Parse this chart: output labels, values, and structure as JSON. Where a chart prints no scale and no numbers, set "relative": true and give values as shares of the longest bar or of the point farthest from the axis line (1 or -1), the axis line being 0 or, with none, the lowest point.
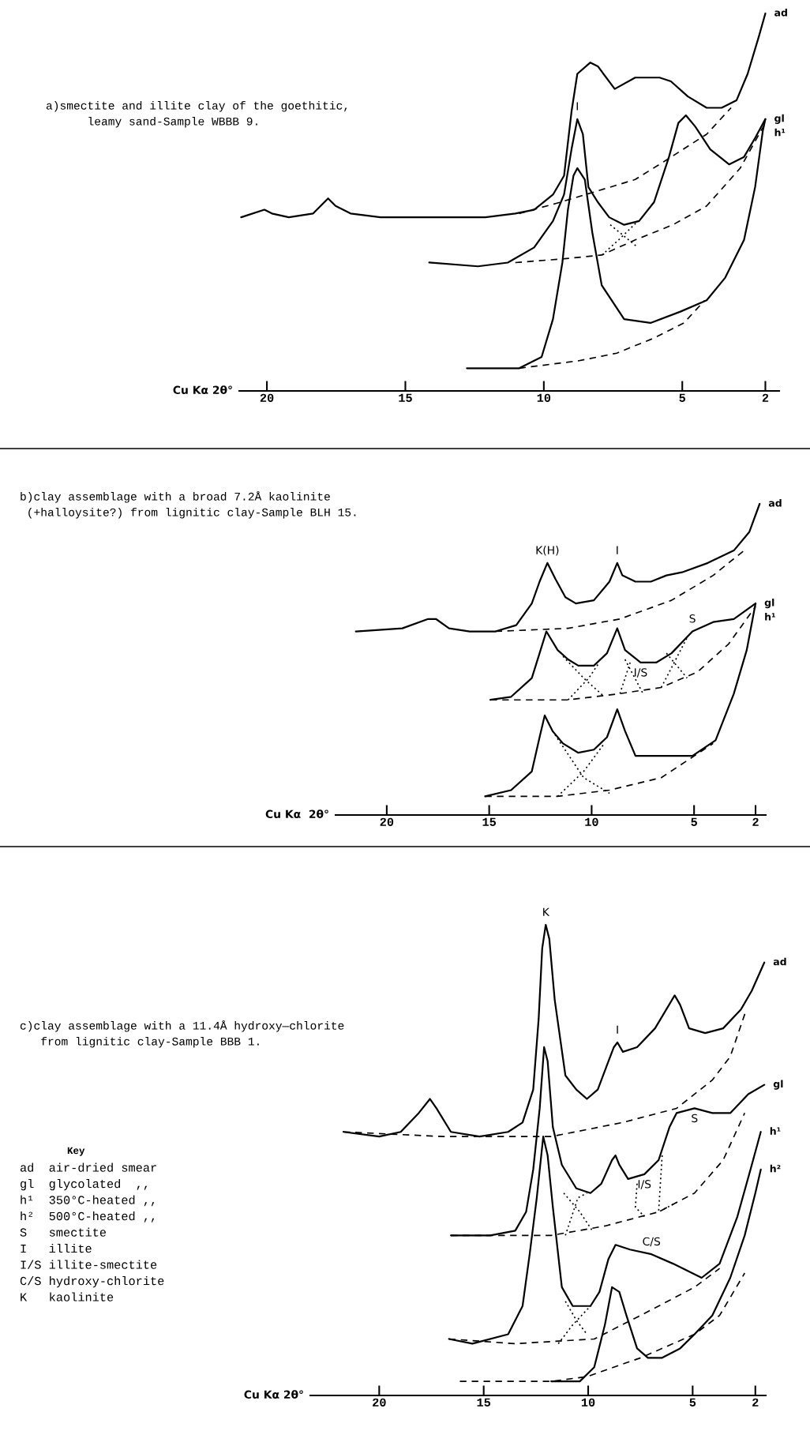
{
  "chart_data": [
    {
      "type": "line",
      "relative": true,
      "title": "a)smectite and illite clay of the goethitic,\n      leamy sand-Sample WBBB 9.",
      "xlabel": "Cu Kα 2θ°",
      "xlim": [
        21,
        1.5
      ],
      "xticks": [
        20,
        15,
        10,
        5,
        2
      ],
      "grid": false,
      "marker": "none",
      "series": [
        {
          "name": "ad",
          "color": "#000000",
          "line_style": "solid",
          "x": [
            20.93,
            20.09,
            19.82,
            19.21,
            18.33,
            17.79,
            17.52,
            16.98,
            15.9,
            14.0,
            12.11,
            11.03,
            10.35,
            9.67,
            9.27,
            9.0,
            8.79,
            8.32,
            8.05,
            7.44,
            6.7,
            5.82,
            5.41,
            4.8,
            4.12,
            3.58,
            3.04,
            2.64,
            2.23,
            2.0
          ],
          "values": [
            0.46,
            0.48,
            0.47,
            0.46,
            0.47,
            0.51,
            0.49,
            0.47,
            0.46,
            0.46,
            0.46,
            0.47,
            0.48,
            0.52,
            0.57,
            0.74,
            0.84,
            0.87,
            0.86,
            0.8,
            0.83,
            0.83,
            0.82,
            0.78,
            0.75,
            0.75,
            0.77,
            0.84,
            0.94,
            1.0
          ]
        },
        {
          "color": "#000000",
          "line_style": "dashed",
          "x": [
            10.89,
            9.4,
            8.05,
            6.7,
            5.61,
            4.12,
            3.24
          ],
          "values": [
            0.47,
            0.5,
            0.53,
            0.56,
            0.61,
            0.68,
            0.75
          ]
        },
        {
          "name": "gl",
          "color": "#000000",
          "line_style": "solid",
          "x": [
            14.14,
            12.38,
            11.3,
            10.35,
            9.67,
            9.27,
            9.0,
            8.79,
            8.59,
            8.39,
            8.05,
            7.64,
            7.1,
            6.56,
            6.02,
            5.48,
            5.14,
            4.87,
            4.53,
            3.99,
            3.31,
            2.77,
            2.37,
            2.0
          ],
          "values": [
            0.34,
            0.33,
            0.34,
            0.38,
            0.45,
            0.52,
            0.64,
            0.72,
            0.68,
            0.54,
            0.5,
            0.46,
            0.44,
            0.45,
            0.5,
            0.62,
            0.71,
            0.73,
            0.7,
            0.64,
            0.6,
            0.62,
            0.67,
            0.72
          ]
        },
        {
          "color": "#000000",
          "line_style": "dashed",
          "x": [
            11.03,
            9.27,
            7.91,
            6.7,
            5.34,
            4.12,
            2.91,
            2.0
          ],
          "values": [
            0.34,
            0.35,
            0.36,
            0.4,
            0.44,
            0.49,
            0.59,
            0.71
          ]
        },
        {
          "color": "#000000",
          "line_style": "dotted",
          "x": [
            7.6,
            7.1,
            6.6
          ],
          "values": [
            0.44,
            0.41,
            0.38
          ]
        },
        {
          "color": "#000000",
          "line_style": "dotted",
          "x": [
            7.9,
            7.3,
            6.6
          ],
          "values": [
            0.36,
            0.4,
            0.45
          ]
        },
        {
          "name": "h¹",
          "color": "#000000",
          "line_style": "solid",
          "x": [
            12.78,
            12.11,
            10.89,
            10.08,
            9.67,
            9.33,
            9.13,
            8.93,
            8.79,
            8.52,
            8.25,
            7.91,
            7.1,
            6.15,
            5.07,
            4.12,
            3.45,
            2.77,
            2.37,
            2.09,
            2.0
          ],
          "values": [
            0.06,
            0.06,
            0.06,
            0.09,
            0.19,
            0.34,
            0.48,
            0.57,
            0.59,
            0.56,
            0.42,
            0.28,
            0.19,
            0.18,
            0.21,
            0.24,
            0.3,
            0.4,
            0.54,
            0.69,
            0.72
          ]
        },
        {
          "color": "#000000",
          "line_style": "dashed",
          "x": [
            10.89,
            8.73,
            7.37,
            6.02,
            4.94,
            4.19
          ],
          "values": [
            0.06,
            0.08,
            0.1,
            0.14,
            0.18,
            0.24
          ]
        }
      ],
      "annotations": [
        {
          "text": "I",
          "x": 8.79,
          "y": 0.72
        }
      ]
    },
    {
      "type": "line",
      "relative": true,
      "title": "b)clay assemblage with a broad 7.2Å kaolinite\n (+halloysite?) from lignitic clay-Sample BLH 15.",
      "xlabel": "Cu Kα  2θ°",
      "xlim": [
        22.5,
        1.5
      ],
      "xticks": [
        20,
        15,
        10,
        5,
        2
      ],
      "grid": false,
      "marker": "none",
      "series": [
        {
          "name": "ad",
          "color": "#000000",
          "line_style": "solid",
          "x": [
            21.51,
            19.24,
            17.98,
            17.6,
            16.96,
            15.95,
            14.69,
            13.68,
            12.92,
            12.54,
            12.16,
            11.78,
            11.28,
            10.77,
            9.89,
            9.13,
            8.75,
            8.5,
            7.86,
            7.11,
            6.35,
            5.59,
            4.33,
            3.06,
            2.3,
            1.8
          ],
          "values": [
            0.59,
            0.6,
            0.63,
            0.63,
            0.6,
            0.59,
            0.59,
            0.61,
            0.68,
            0.75,
            0.81,
            0.76,
            0.7,
            0.68,
            0.69,
            0.75,
            0.81,
            0.77,
            0.75,
            0.75,
            0.77,
            0.78,
            0.81,
            0.85,
            0.91,
            1.0
          ]
        },
        {
          "color": "#000000",
          "line_style": "dashed",
          "x": [
            14.69,
            11.15,
            8.62,
            6.1,
            4.07,
            2.56
          ],
          "values": [
            0.59,
            0.6,
            0.63,
            0.69,
            0.77,
            0.85
          ]
        },
        {
          "name": "gl",
          "color": "#000000",
          "line_style": "solid",
          "x": [
            14.94,
            13.93,
            12.92,
            12.54,
            12.21,
            11.66,
            11.15,
            10.65,
            9.89,
            9.25,
            8.75,
            8.37,
            7.61,
            6.85,
            6.1,
            5.08,
            4.07,
            3.06,
            2.0
          ],
          "values": [
            0.37,
            0.38,
            0.44,
            0.52,
            0.59,
            0.53,
            0.5,
            0.48,
            0.48,
            0.52,
            0.6,
            0.53,
            0.49,
            0.49,
            0.52,
            0.59,
            0.62,
            0.63,
            0.68
          ]
        },
        {
          "color": "#000000",
          "line_style": "dashed",
          "x": [
            14.94,
            11.15,
            8.62,
            6.6,
            4.83,
            3.31,
            2.0
          ],
          "values": [
            0.37,
            0.37,
            0.39,
            0.41,
            0.46,
            0.55,
            0.67
          ]
        },
        {
          "color": "#000000",
          "line_style": "dotted",
          "x": [
            11.4,
            10.39,
            9.38
          ],
          "values": [
            0.51,
            0.44,
            0.38
          ]
        },
        {
          "color": "#000000",
          "line_style": "dotted",
          "x": [
            11.15,
            10.14,
            9.63
          ],
          "values": [
            0.37,
            0.44,
            0.49
          ]
        },
        {
          "color": "#000000",
          "line_style": "dotted",
          "x": [
            8.62,
            8.12
          ],
          "values": [
            0.39,
            0.49
          ]
        },
        {
          "color": "#000000",
          "line_style": "dotted",
          "x": [
            8.37,
            7.49
          ],
          "values": [
            0.5,
            0.39
          ]
        },
        {
          "color": "#000000",
          "line_style": "dotted",
          "x": [
            6.35,
            5.34
          ],
          "values": [
            0.52,
            0.44
          ]
        },
        {
          "color": "#000000",
          "line_style": "dotted",
          "x": [
            6.6,
            5.34
          ],
          "values": [
            0.41,
            0.57
          ]
        },
        {
          "name": "h¹",
          "color": "#000000",
          "line_style": "solid",
          "x": [
            15.2,
            13.93,
            12.92,
            12.54,
            12.29,
            11.91,
            11.4,
            10.65,
            9.89,
            9.25,
            8.75,
            8.37,
            7.86,
            6.6,
            5.08,
            3.95,
            3.06,
            2.43,
            2.0
          ],
          "values": [
            0.06,
            0.08,
            0.14,
            0.25,
            0.32,
            0.27,
            0.23,
            0.2,
            0.21,
            0.25,
            0.34,
            0.27,
            0.19,
            0.19,
            0.19,
            0.24,
            0.39,
            0.53,
            0.68
          ]
        },
        {
          "color": "#000000",
          "line_style": "dashed",
          "x": [
            15.2,
            11.66,
            9.13,
            6.6,
            4.07
          ],
          "values": [
            0.06,
            0.06,
            0.08,
            0.12,
            0.23
          ]
        },
        {
          "color": "#000000",
          "line_style": "dotted",
          "x": [
            11.91,
            10.39,
            9.13
          ],
          "values": [
            0.27,
            0.12,
            0.07
          ]
        },
        {
          "color": "#000000",
          "line_style": "dotted",
          "x": [
            11.66,
            10.39,
            9.38
          ],
          "values": [
            0.06,
            0.14,
            0.23
          ]
        }
      ],
      "annotations": [
        {
          "text": "K(H)",
          "x": 12.16,
          "y": 0.81
        },
        {
          "text": "I",
          "x": 8.75,
          "y": 0.81
        },
        {
          "text": "I/S",
          "x": 7.61,
          "y": 0.49
        },
        {
          "text": "S",
          "x": 5.08,
          "y": 0.59
        }
      ]
    },
    {
      "type": "line",
      "relative": true,
      "title": "c)clay assemblage with a 11.4Å hydroxy—chlorite\n   from lignitic clay-Sample BBB 1.",
      "xlabel": "Cu Kα 2θ°",
      "xlim": [
        23.3,
        1.5
      ],
      "xticks": [
        20,
        15,
        10,
        5,
        2
      ],
      "grid": false,
      "marker": "none",
      "series": [
        {
          "name": "ad",
          "color": "#000000",
          "line_style": "solid",
          "x": [
            21.71,
            20.0,
            18.97,
            18.11,
            17.57,
            17.26,
            16.57,
            15.2,
            13.83,
            13.14,
            12.63,
            12.37,
            12.2,
            12.03,
            11.86,
            11.6,
            11.09,
            10.57,
            10.06,
            9.54,
            9.03,
            8.77,
            8.6,
            8.34,
            7.66,
            6.8,
            5.86,
            5.6,
            5.17,
            4.4,
            3.54,
            2.69,
            2.17,
            1.57
          ],
          "values": [
            0.56,
            0.55,
            0.56,
            0.6,
            0.63,
            0.61,
            0.56,
            0.55,
            0.56,
            0.58,
            0.65,
            0.8,
            0.95,
            1.0,
            0.97,
            0.84,
            0.68,
            0.65,
            0.63,
            0.65,
            0.71,
            0.74,
            0.75,
            0.73,
            0.74,
            0.78,
            0.85,
            0.83,
            0.78,
            0.77,
            0.78,
            0.82,
            0.86,
            0.92
          ]
        },
        {
          "color": "#000000",
          "line_style": "dashed",
          "x": [
            21.71,
            16.91,
            11.77,
            8.34,
            5.77,
            4.06,
            3.2,
            2.43
          ],
          "values": [
            0.56,
            0.55,
            0.55,
            0.58,
            0.61,
            0.67,
            0.72,
            0.82
          ]
        },
        {
          "name": "gl",
          "color": "#000000",
          "line_style": "solid",
          "x": [
            16.57,
            14.69,
            13.49,
            12.97,
            12.63,
            12.32,
            12.11,
            11.94,
            11.69,
            11.26,
            10.57,
            9.89,
            9.37,
            8.86,
            8.69,
            8.51,
            8.09,
            7.31,
            6.63,
            6.11,
            5.77,
            4.91,
            4.06,
            3.2,
            2.34,
            1.57
          ],
          "values": [
            0.34,
            0.34,
            0.35,
            0.39,
            0.48,
            0.61,
            0.74,
            0.71,
            0.57,
            0.49,
            0.44,
            0.43,
            0.45,
            0.5,
            0.51,
            0.49,
            0.46,
            0.47,
            0.5,
            0.57,
            0.6,
            0.61,
            0.6,
            0.6,
            0.64,
            0.66
          ]
        },
        {
          "color": "#000000",
          "line_style": "dashed",
          "x": [
            16.57,
            11.77,
            9.2,
            6.63,
            4.91,
            3.54,
            2.51
          ],
          "values": [
            0.34,
            0.34,
            0.36,
            0.39,
            0.43,
            0.5,
            0.6
          ]
        },
        {
          "color": "#000000",
          "line_style": "dotted",
          "x": [
            11.17,
            10.4,
            9.8
          ],
          "values": [
            0.43,
            0.39,
            0.35
          ]
        },
        {
          "color": "#000000",
          "line_style": "dotted",
          "x": [
            11.09,
            10.49,
            10.06
          ],
          "values": [
            0.34,
            0.42,
            0.43
          ]
        },
        {
          "color": "#000000",
          "line_style": "dotted",
          "x": [
            7.66,
            7.74,
            7.31
          ],
          "values": [
            0.45,
            0.4,
            0.38
          ]
        },
        {
          "color": "#000000",
          "line_style": "dotted",
          "x": [
            6.46,
            6.63,
            5.77
          ],
          "values": [
            0.51,
            0.39,
            0.41
          ]
        },
        {
          "name": "h¹",
          "color": "#000000",
          "line_style": "solid",
          "x": [
            16.66,
            15.54,
            13.83,
            13.14,
            12.8,
            12.46,
            12.15,
            11.94,
            11.69,
            11.26,
            10.74,
            9.89,
            9.46,
            9.03,
            8.69,
            8.0,
            6.97,
            5.94,
            4.57,
            3.71,
            2.86,
            2.17,
            1.74
          ],
          "values": [
            0.12,
            0.11,
            0.13,
            0.19,
            0.3,
            0.42,
            0.55,
            0.51,
            0.4,
            0.23,
            0.19,
            0.19,
            0.22,
            0.29,
            0.32,
            0.31,
            0.3,
            0.28,
            0.25,
            0.28,
            0.38,
            0.49,
            0.56
          ]
        },
        {
          "color": "#000000",
          "line_style": "dashed",
          "x": [
            16.66,
            13.49,
            9.71,
            7.49,
            4.91,
            3.71
          ],
          "values": [
            0.12,
            0.11,
            0.12,
            0.17,
            0.23,
            0.27
          ]
        },
        {
          "color": "#000000",
          "line_style": "dotted",
          "x": [
            11.09,
            10.57,
            10.06
          ],
          "values": [
            0.2,
            0.16,
            0.13
          ]
        },
        {
          "color": "#000000",
          "line_style": "dotted",
          "x": [
            11.43,
            10.74,
            9.89
          ],
          "values": [
            0.11,
            0.15,
            0.19
          ]
        },
        {
          "name": "h²",
          "color": "#000000",
          "line_style": "solid",
          "x": [
            11.77,
            10.4,
            9.71,
            9.2,
            8.86,
            8.51,
            8.17,
            7.66,
            7.14,
            6.46,
            5.6,
            4.91,
            4.06,
            3.2,
            2.51,
            2.0,
            1.74
          ],
          "values": [
            0.03,
            0.03,
            0.06,
            0.15,
            0.23,
            0.22,
            0.17,
            0.1,
            0.08,
            0.08,
            0.1,
            0.13,
            0.17,
            0.25,
            0.34,
            0.43,
            0.48
          ]
        },
        {
          "color": "#000000",
          "line_style": "dashed",
          "x": [
            16.14,
            13.49,
            11.77,
            10.06,
            7.49,
            4.91,
            3.71,
            2.51
          ],
          "values": [
            0.03,
            0.03,
            0.03,
            0.04,
            0.08,
            0.13,
            0.17,
            0.26
          ]
        }
      ],
      "annotations": [
        {
          "text": "K",
          "x": 12.03,
          "y": 1.0
        },
        {
          "text": "I",
          "x": 8.6,
          "y": 0.75
        },
        {
          "text": "S",
          "x": 4.91,
          "y": 0.61
        },
        {
          "text": "I/S",
          "x": 7.31,
          "y": 0.47
        },
        {
          "text": "C/S",
          "x": 6.97,
          "y": 0.3
        },
        "Key",
        "ad  air-dried smear",
        "gl  glycolated  ,,",
        "h¹  350°C-heated ,,",
        "h²  500°C-heated ,,",
        "S   smectite",
        "I   illite",
        "I/S illite-smectite",
        "C/S hydroxy-chlorite",
        "K   kaolinite"
      ]
    }
  ]
}
